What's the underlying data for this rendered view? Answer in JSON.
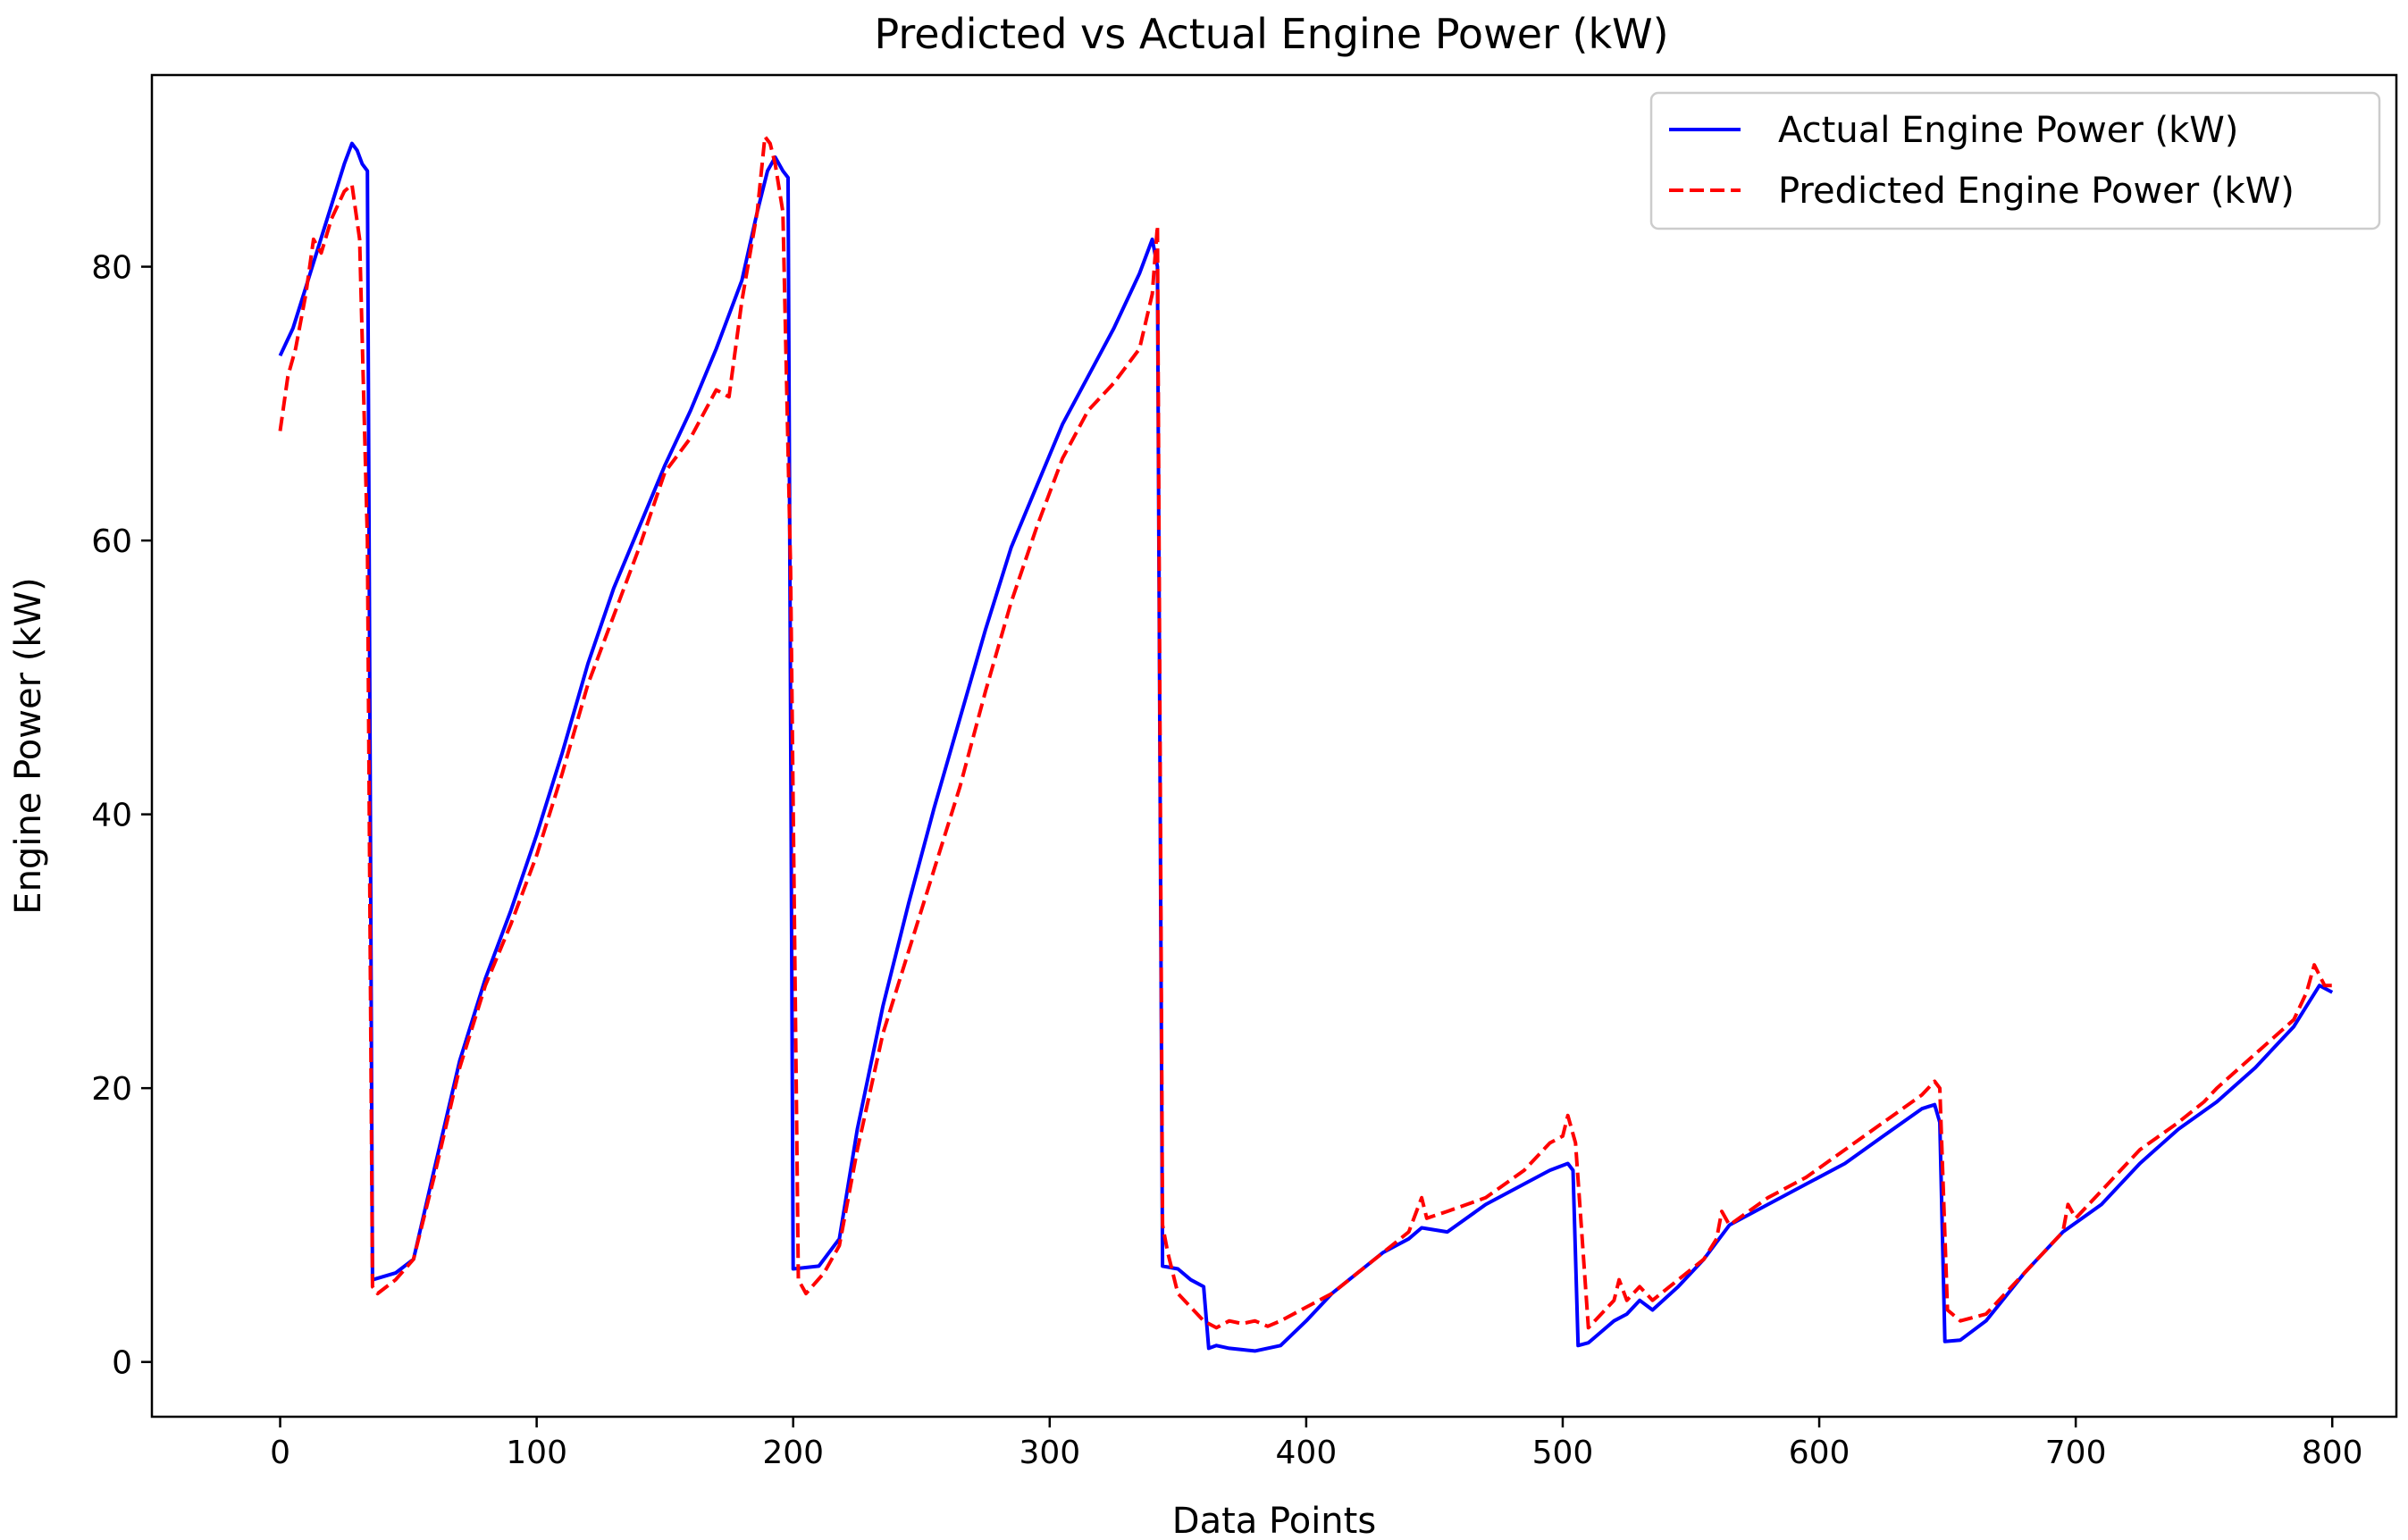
{
  "chart_data": {
    "type": "line",
    "title": "Predicted vs Actual Engine Power (kW)",
    "xlabel": "Data Points",
    "ylabel": "Engine Power (kW)",
    "xlim": [
      -50,
      825
    ],
    "ylim": [
      -4,
      94
    ],
    "xticks": [
      0,
      100,
      200,
      300,
      400,
      500,
      600,
      700,
      800
    ],
    "yticks": [
      0,
      20,
      40,
      60,
      80
    ],
    "grid": false,
    "legend_position": "top-right",
    "series": [
      {
        "name": "Actual Engine Power (kW)",
        "color": "#0000ff",
        "style": "solid",
        "x": [
          0,
          5,
          10,
          15,
          20,
          25,
          28,
          30,
          32,
          34,
          36,
          45,
          52,
          60,
          70,
          80,
          90,
          100,
          110,
          120,
          130,
          140,
          150,
          160,
          170,
          180,
          186,
          190,
          193,
          196,
          198,
          200,
          210,
          218,
          225,
          235,
          245,
          255,
          265,
          275,
          285,
          295,
          305,
          315,
          325,
          335,
          340,
          342,
          344,
          350,
          355,
          360,
          362,
          365,
          370,
          375,
          380,
          390,
          400,
          410,
          420,
          430,
          440,
          445,
          455,
          470,
          485,
          495,
          502,
          504,
          506,
          510,
          515,
          520,
          525,
          530,
          535,
          545,
          555,
          565,
          580,
          595,
          610,
          625,
          640,
          645,
          647,
          649,
          655,
          665,
          680,
          695,
          710,
          725,
          740,
          755,
          770,
          785,
          790,
          795,
          800
        ],
        "y": [
          73.5,
          75.5,
          78.5,
          81.5,
          84.5,
          87.5,
          89,
          88.5,
          87.5,
          87,
          6,
          6.5,
          7.5,
          14,
          22,
          28,
          33,
          38.5,
          44.5,
          51,
          56.5,
          61,
          65.5,
          69.5,
          74,
          79,
          84,
          87,
          88,
          87,
          86.5,
          6.8,
          7,
          9,
          17,
          26,
          33.5,
          40.5,
          47,
          53.5,
          59.5,
          64,
          68.5,
          72,
          75.5,
          79.5,
          82,
          80,
          7,
          6.8,
          6,
          5.5,
          1,
          1.2,
          1,
          0.9,
          0.8,
          1.2,
          3,
          5,
          6.5,
          8,
          9,
          9.8,
          9.5,
          11.5,
          13,
          14,
          14.5,
          14,
          1.2,
          1.4,
          2.2,
          3,
          3.5,
          4.5,
          3.8,
          5.5,
          7.5,
          10,
          11.5,
          13,
          14.5,
          16.5,
          18.5,
          18.8,
          17.5,
          1.5,
          1.6,
          3,
          6.5,
          9.5,
          11.5,
          14.5,
          17,
          19,
          21.5,
          24.5,
          26,
          27.5,
          27
        ]
      },
      {
        "name": "Predicted Engine Power (kW)",
        "color": "#ff0000",
        "style": "dashed",
        "x": [
          0,
          3,
          6,
          10,
          13,
          16,
          20,
          25,
          28,
          31,
          34,
          36,
          38,
          45,
          52,
          60,
          70,
          80,
          90,
          100,
          110,
          120,
          130,
          140,
          150,
          160,
          170,
          175,
          180,
          186,
          189,
          191,
          193,
          196,
          199,
          202,
          205,
          212,
          218,
          225,
          235,
          245,
          255,
          265,
          275,
          285,
          295,
          305,
          315,
          325,
          335,
          340,
          342,
          344,
          346,
          350,
          355,
          360,
          365,
          370,
          375,
          380,
          385,
          390,
          400,
          410,
          420,
          430,
          440,
          445,
          447,
          455,
          470,
          485,
          495,
          500,
          502,
          505,
          510,
          515,
          520,
          522,
          525,
          530,
          535,
          545,
          555,
          560,
          562,
          565,
          580,
          595,
          610,
          625,
          640,
          645,
          647,
          650,
          655,
          665,
          680,
          695,
          697,
          700,
          710,
          725,
          740,
          750,
          755,
          770,
          785,
          790,
          793,
          797,
          800
        ],
        "y": [
          68,
          72,
          74,
          78,
          82,
          81,
          83.5,
          85.5,
          86,
          82,
          60,
          5.5,
          5,
          6,
          7.5,
          13.5,
          21.5,
          27.5,
          32,
          37,
          43,
          49.5,
          54.5,
          59.5,
          65,
          67.5,
          71,
          70.5,
          77.5,
          84,
          89.5,
          89,
          87.5,
          84,
          58,
          6,
          5,
          6.5,
          8.5,
          15.5,
          24,
          30,
          36,
          42,
          49,
          55.5,
          61,
          66,
          69.5,
          71.5,
          74,
          78,
          83,
          10,
          8,
          5,
          4,
          3,
          2.5,
          3,
          2.8,
          3,
          2.6,
          3,
          4,
          5,
          6.5,
          8,
          9.5,
          12,
          10.5,
          11,
          12,
          14,
          16,
          16.5,
          18,
          16,
          2.5,
          3.5,
          4.5,
          6,
          4.5,
          5.5,
          4.5,
          6,
          7.5,
          9,
          11,
          10,
          12,
          13.5,
          15.5,
          17.5,
          19.5,
          20.5,
          20,
          3.8,
          3,
          3.5,
          6.5,
          9.5,
          11.5,
          10.5,
          12.5,
          15.5,
          17.5,
          19,
          20,
          22.5,
          25,
          27,
          29,
          27.5,
          27.5
        ]
      }
    ]
  }
}
